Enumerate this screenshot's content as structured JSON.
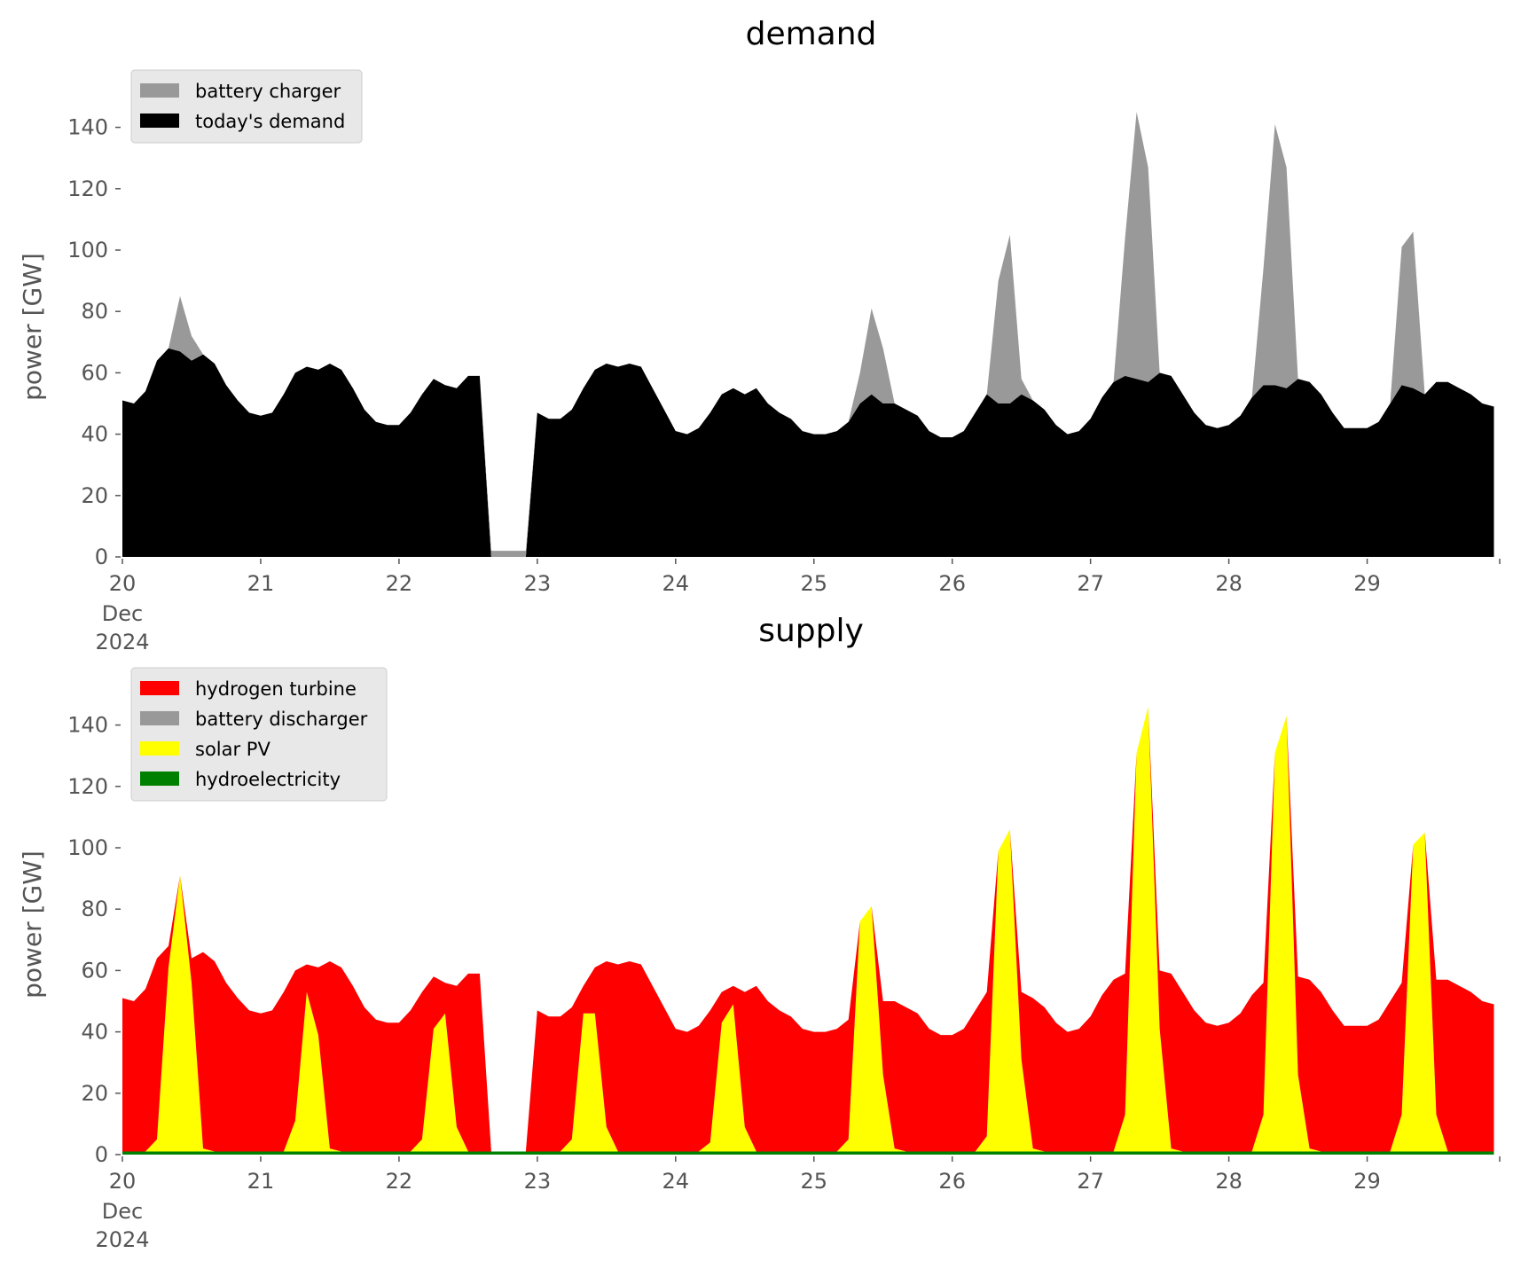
{
  "chart_data": [
    {
      "type": "area",
      "title": "demand",
      "ylabel": "power [GW]",
      "xlabel": "",
      "ylim": [
        0,
        150
      ],
      "xlim": [
        "2024-12-20 00:00",
        "2024-12-29 23:00"
      ],
      "stacked": true,
      "grid": false,
      "legend_position": "top-left",
      "yticks": [
        "0",
        "20",
        "40",
        "60",
        "80",
        "100",
        "120",
        "140"
      ],
      "xticks": [
        "20",
        "21",
        "22",
        "23",
        "24",
        "25",
        "26",
        "27",
        "28",
        "29"
      ],
      "xtick_first_extra": [
        "Dec",
        "2024"
      ],
      "x": [
        "2024-12-20 00:00",
        "2024-12-20 02:00",
        "2024-12-20 04:00",
        "2024-12-20 06:00",
        "2024-12-20 08:00",
        "2024-12-20 10:00",
        "2024-12-20 12:00",
        "2024-12-20 14:00",
        "2024-12-20 16:00",
        "2024-12-20 18:00",
        "2024-12-20 20:00",
        "2024-12-20 22:00",
        "2024-12-21 00:00",
        "2024-12-21 02:00",
        "2024-12-21 04:00",
        "2024-12-21 06:00",
        "2024-12-21 08:00",
        "2024-12-21 10:00",
        "2024-12-21 12:00",
        "2024-12-21 14:00",
        "2024-12-21 16:00",
        "2024-12-21 18:00",
        "2024-12-21 20:00",
        "2024-12-21 22:00",
        "2024-12-22 00:00",
        "2024-12-22 02:00",
        "2024-12-22 04:00",
        "2024-12-22 06:00",
        "2024-12-22 08:00",
        "2024-12-22 10:00",
        "2024-12-22 12:00",
        "2024-12-22 14:00",
        "2024-12-22 16:00",
        "2024-12-22 18:00",
        "2024-12-22 20:00",
        "2024-12-22 22:00",
        "2024-12-23 00:00",
        "2024-12-23 02:00",
        "2024-12-23 04:00",
        "2024-12-23 06:00",
        "2024-12-23 08:00",
        "2024-12-23 10:00",
        "2024-12-23 12:00",
        "2024-12-23 14:00",
        "2024-12-23 16:00",
        "2024-12-23 18:00",
        "2024-12-23 20:00",
        "2024-12-23 22:00",
        "2024-12-24 00:00",
        "2024-12-24 02:00",
        "2024-12-24 04:00",
        "2024-12-24 06:00",
        "2024-12-24 08:00",
        "2024-12-24 10:00",
        "2024-12-24 12:00",
        "2024-12-24 14:00",
        "2024-12-24 16:00",
        "2024-12-24 18:00",
        "2024-12-24 20:00",
        "2024-12-24 22:00",
        "2024-12-25 00:00",
        "2024-12-25 02:00",
        "2024-12-25 04:00",
        "2024-12-25 06:00",
        "2024-12-25 08:00",
        "2024-12-25 10:00",
        "2024-12-25 12:00",
        "2024-12-25 14:00",
        "2024-12-25 16:00",
        "2024-12-25 18:00",
        "2024-12-25 20:00",
        "2024-12-25 22:00",
        "2024-12-26 00:00",
        "2024-12-26 02:00",
        "2024-12-26 04:00",
        "2024-12-26 06:00",
        "2024-12-26 08:00",
        "2024-12-26 10:00",
        "2024-12-26 12:00",
        "2024-12-26 14:00",
        "2024-12-26 16:00",
        "2024-12-26 18:00",
        "2024-12-26 20:00",
        "2024-12-26 22:00",
        "2024-12-27 00:00",
        "2024-12-27 02:00",
        "2024-12-27 04:00",
        "2024-12-27 06:00",
        "2024-12-27 08:00",
        "2024-12-27 10:00",
        "2024-12-27 12:00",
        "2024-12-27 14:00",
        "2024-12-27 16:00",
        "2024-12-27 18:00",
        "2024-12-27 20:00",
        "2024-12-27 22:00",
        "2024-12-28 00:00",
        "2024-12-28 02:00",
        "2024-12-28 04:00",
        "2024-12-28 06:00",
        "2024-12-28 08:00",
        "2024-12-28 10:00",
        "2024-12-28 12:00",
        "2024-12-28 14:00",
        "2024-12-28 16:00",
        "2024-12-28 18:00",
        "2024-12-28 20:00",
        "2024-12-28 22:00",
        "2024-12-29 00:00",
        "2024-12-29 02:00",
        "2024-12-29 04:00",
        "2024-12-29 06:00",
        "2024-12-29 08:00",
        "2024-12-29 10:00",
        "2024-12-29 12:00",
        "2024-12-29 14:00",
        "2024-12-29 16:00",
        "2024-12-29 18:00",
        "2024-12-29 20:00",
        "2024-12-29 22:00"
      ],
      "series": [
        {
          "name": "today's demand",
          "color": "#000000",
          "values": [
            51,
            50,
            54,
            64,
            68,
            67,
            64,
            66,
            63,
            56,
            51,
            47,
            46,
            47,
            53,
            60,
            62,
            61,
            63,
            61,
            55,
            48,
            44,
            43,
            43,
            47,
            53,
            58,
            56,
            55,
            59,
            59,
            0,
            0,
            0,
            0,
            47,
            45,
            45,
            48,
            55,
            61,
            63,
            62,
            63,
            62,
            55,
            48,
            41,
            40,
            42,
            47,
            53,
            55,
            53,
            55,
            50,
            47,
            45,
            41,
            40,
            40,
            41,
            44,
            50,
            53,
            50,
            50,
            48,
            46,
            41,
            39,
            39,
            41,
            47,
            53,
            50,
            50,
            53,
            51,
            48,
            43,
            40,
            41,
            45,
            52,
            57,
            59,
            58,
            57,
            60,
            59,
            53,
            47,
            43,
            42,
            43,
            46,
            52,
            56,
            56,
            55,
            58,
            57,
            53,
            47,
            42,
            42,
            42,
            44,
            50,
            56,
            55,
            53,
            57,
            57,
            55,
            53,
            50,
            49
          ]
        },
        {
          "name": "battery charger",
          "color": "#999999",
          "values": [
            0,
            0,
            0,
            0,
            0,
            18,
            8,
            0,
            0,
            0,
            0,
            0,
            0,
            0,
            0,
            0,
            0,
            0,
            0,
            0,
            0,
            0,
            0,
            0,
            0,
            0,
            0,
            0,
            0,
            0,
            0,
            0,
            2,
            2,
            2,
            2,
            0,
            0,
            0,
            0,
            0,
            0,
            0,
            0,
            0,
            0,
            0,
            0,
            0,
            0,
            0,
            0,
            0,
            0,
            0,
            0,
            0,
            0,
            0,
            0,
            0,
            0,
            0,
            0,
            10,
            28,
            18,
            0,
            0,
            0,
            0,
            0,
            0,
            0,
            0,
            0,
            40,
            55,
            5,
            0,
            0,
            0,
            0,
            0,
            0,
            0,
            0,
            45,
            87,
            70,
            0,
            0,
            0,
            0,
            0,
            0,
            0,
            0,
            0,
            38,
            85,
            72,
            0,
            0,
            0,
            0,
            0,
            0,
            0,
            0,
            0,
            45,
            51,
            0,
            0,
            0,
            0,
            0,
            0,
            0
          ]
        }
      ],
      "legend": [
        "battery charger",
        "today's demand"
      ]
    },
    {
      "type": "area",
      "title": "supply",
      "ylabel": "power [GW]",
      "xlabel": "",
      "ylim": [
        0,
        150
      ],
      "xlim": [
        "2024-12-20 00:00",
        "2024-12-29 23:00"
      ],
      "stacked": true,
      "grid": false,
      "legend_position": "top-left",
      "yticks": [
        "0",
        "20",
        "40",
        "60",
        "80",
        "100",
        "120",
        "140"
      ],
      "xticks": [
        "20",
        "21",
        "22",
        "23",
        "24",
        "25",
        "26",
        "27",
        "28",
        "29"
      ],
      "xtick_first_extra": [
        "Dec",
        "2024"
      ],
      "series": [
        {
          "name": "hydroelectricity",
          "color": "#008000",
          "values": [
            1,
            1,
            1,
            1,
            1,
            1,
            1,
            1,
            1,
            1,
            1,
            1,
            1,
            1,
            1,
            1,
            1,
            1,
            1,
            1,
            1,
            1,
            1,
            1,
            1,
            1,
            1,
            1,
            1,
            1,
            1,
            1,
            1,
            1,
            1,
            1,
            1,
            1,
            1,
            1,
            1,
            1,
            1,
            1,
            1,
            1,
            1,
            1,
            1,
            1,
            1,
            1,
            1,
            1,
            1,
            1,
            1,
            1,
            1,
            1,
            1,
            1,
            1,
            1,
            1,
            1,
            1,
            1,
            1,
            1,
            1,
            1,
            1,
            1,
            1,
            1,
            1,
            1,
            1,
            1,
            1,
            1,
            1,
            1,
            1,
            1,
            1,
            1,
            1,
            1,
            1,
            1,
            1,
            1,
            1,
            1,
            1,
            1,
            1,
            1,
            1,
            1,
            1,
            1,
            1,
            1,
            1,
            1,
            1,
            1,
            1,
            1,
            1,
            1,
            1,
            1,
            1,
            1,
            1,
            1
          ]
        },
        {
          "name": "solar PV",
          "color": "#ffff00",
          "values": [
            0,
            0,
            0,
            4,
            60,
            90,
            55,
            1,
            0,
            0,
            0,
            0,
            0,
            0,
            0,
            10,
            52,
            38,
            1,
            0,
            0,
            0,
            0,
            0,
            0,
            0,
            4,
            40,
            45,
            8,
            0,
            0,
            0,
            0,
            0,
            0,
            0,
            0,
            0,
            4,
            45,
            45,
            8,
            0,
            0,
            0,
            0,
            0,
            0,
            0,
            0,
            3,
            42,
            48,
            8,
            0,
            0,
            0,
            0,
            0,
            0,
            0,
            0,
            4,
            75,
            80,
            25,
            1,
            0,
            0,
            0,
            0,
            0,
            0,
            0,
            5,
            98,
            105,
            30,
            1,
            0,
            0,
            0,
            0,
            0,
            0,
            0,
            12,
            130,
            145,
            40,
            1,
            0,
            0,
            0,
            0,
            0,
            0,
            0,
            12,
            130,
            142,
            25,
            1,
            0,
            0,
            0,
            0,
            0,
            0,
            0,
            12,
            100,
            104,
            12,
            0,
            0,
            0,
            0,
            0
          ]
        },
        {
          "name": "battery discharger",
          "color": "#999999",
          "values": [
            0,
            0,
            0,
            0,
            0,
            0,
            0,
            0,
            0,
            0,
            0,
            0,
            0,
            0,
            0,
            0,
            0,
            0,
            0,
            0,
            0,
            0,
            0,
            0,
            0,
            0,
            0,
            0,
            0,
            0,
            0,
            0,
            0,
            0,
            0,
            0,
            0,
            0,
            0,
            0,
            0,
            0,
            0,
            0,
            0,
            0,
            0,
            0,
            0,
            0,
            0,
            0,
            0,
            0,
            0,
            0,
            0,
            0,
            0,
            0,
            0,
            0,
            0,
            0,
            0,
            0,
            0,
            0,
            0,
            0,
            0,
            0,
            0,
            0,
            0,
            0,
            0,
            0,
            0,
            0,
            0,
            0,
            0,
            0,
            0,
            0,
            0,
            0,
            0,
            0,
            0,
            0,
            0,
            0,
            0,
            0,
            0,
            0,
            0,
            0,
            0,
            0,
            0,
            0,
            0,
            0,
            0,
            0,
            0,
            0,
            0,
            0,
            0,
            0,
            0,
            0,
            0,
            0,
            0,
            0
          ]
        },
        {
          "name": "hydrogen turbine",
          "color": "#ff0000",
          "values": [
            50,
            49,
            53,
            59,
            7,
            0,
            8,
            64,
            62,
            55,
            50,
            46,
            45,
            46,
            52,
            49,
            9,
            22,
            61,
            60,
            54,
            47,
            43,
            42,
            42,
            46,
            48,
            17,
            10,
            46,
            58,
            58,
            0,
            0,
            0,
            0,
            46,
            44,
            44,
            43,
            9,
            15,
            54,
            61,
            62,
            61,
            54,
            47,
            40,
            39,
            41,
            43,
            10,
            6,
            44,
            54,
            49,
            46,
            44,
            40,
            39,
            39,
            40,
            39,
            0,
            0,
            24,
            48,
            47,
            45,
            40,
            38,
            38,
            40,
            46,
            47,
            0,
            0,
            22,
            49,
            47,
            42,
            39,
            40,
            44,
            51,
            56,
            46,
            0,
            0,
            19,
            57,
            52,
            46,
            42,
            41,
            42,
            45,
            51,
            43,
            0,
            0,
            32,
            55,
            52,
            46,
            41,
            41,
            41,
            43,
            49,
            43,
            0,
            0,
            44,
            56,
            54,
            52,
            49,
            48
          ]
        }
      ],
      "legend": [
        "hydrogen turbine",
        "battery discharger",
        "solar PV",
        "hydroelectricity"
      ]
    }
  ]
}
